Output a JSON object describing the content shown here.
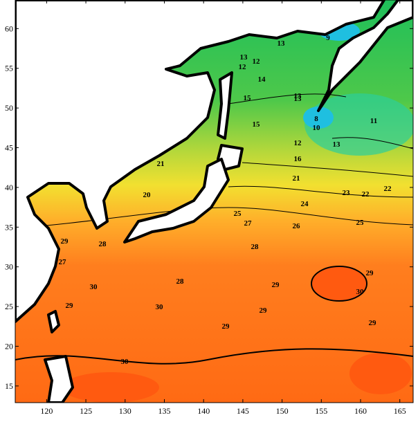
{
  "map": {
    "xlim": [
      116,
      166.7
    ],
    "ylim": [
      12.9,
      63.6
    ],
    "xticks": [
      120,
      125,
      130,
      135,
      140,
      145,
      150,
      155,
      160,
      165
    ],
    "yticks": [
      15,
      20,
      25,
      30,
      35,
      40,
      45,
      50,
      55,
      60
    ],
    "contour_labels": [
      13,
      12,
      12,
      14,
      9,
      13,
      15,
      13,
      15,
      8,
      10,
      11,
      13,
      12,
      13,
      16,
      21,
      21,
      20,
      22,
      23,
      22,
      24,
      25,
      25,
      27,
      26,
      28,
      28,
      29,
      27,
      30,
      28,
      30,
      29,
      29,
      30,
      29,
      29,
      30,
      29,
      29
    ]
  }
}
